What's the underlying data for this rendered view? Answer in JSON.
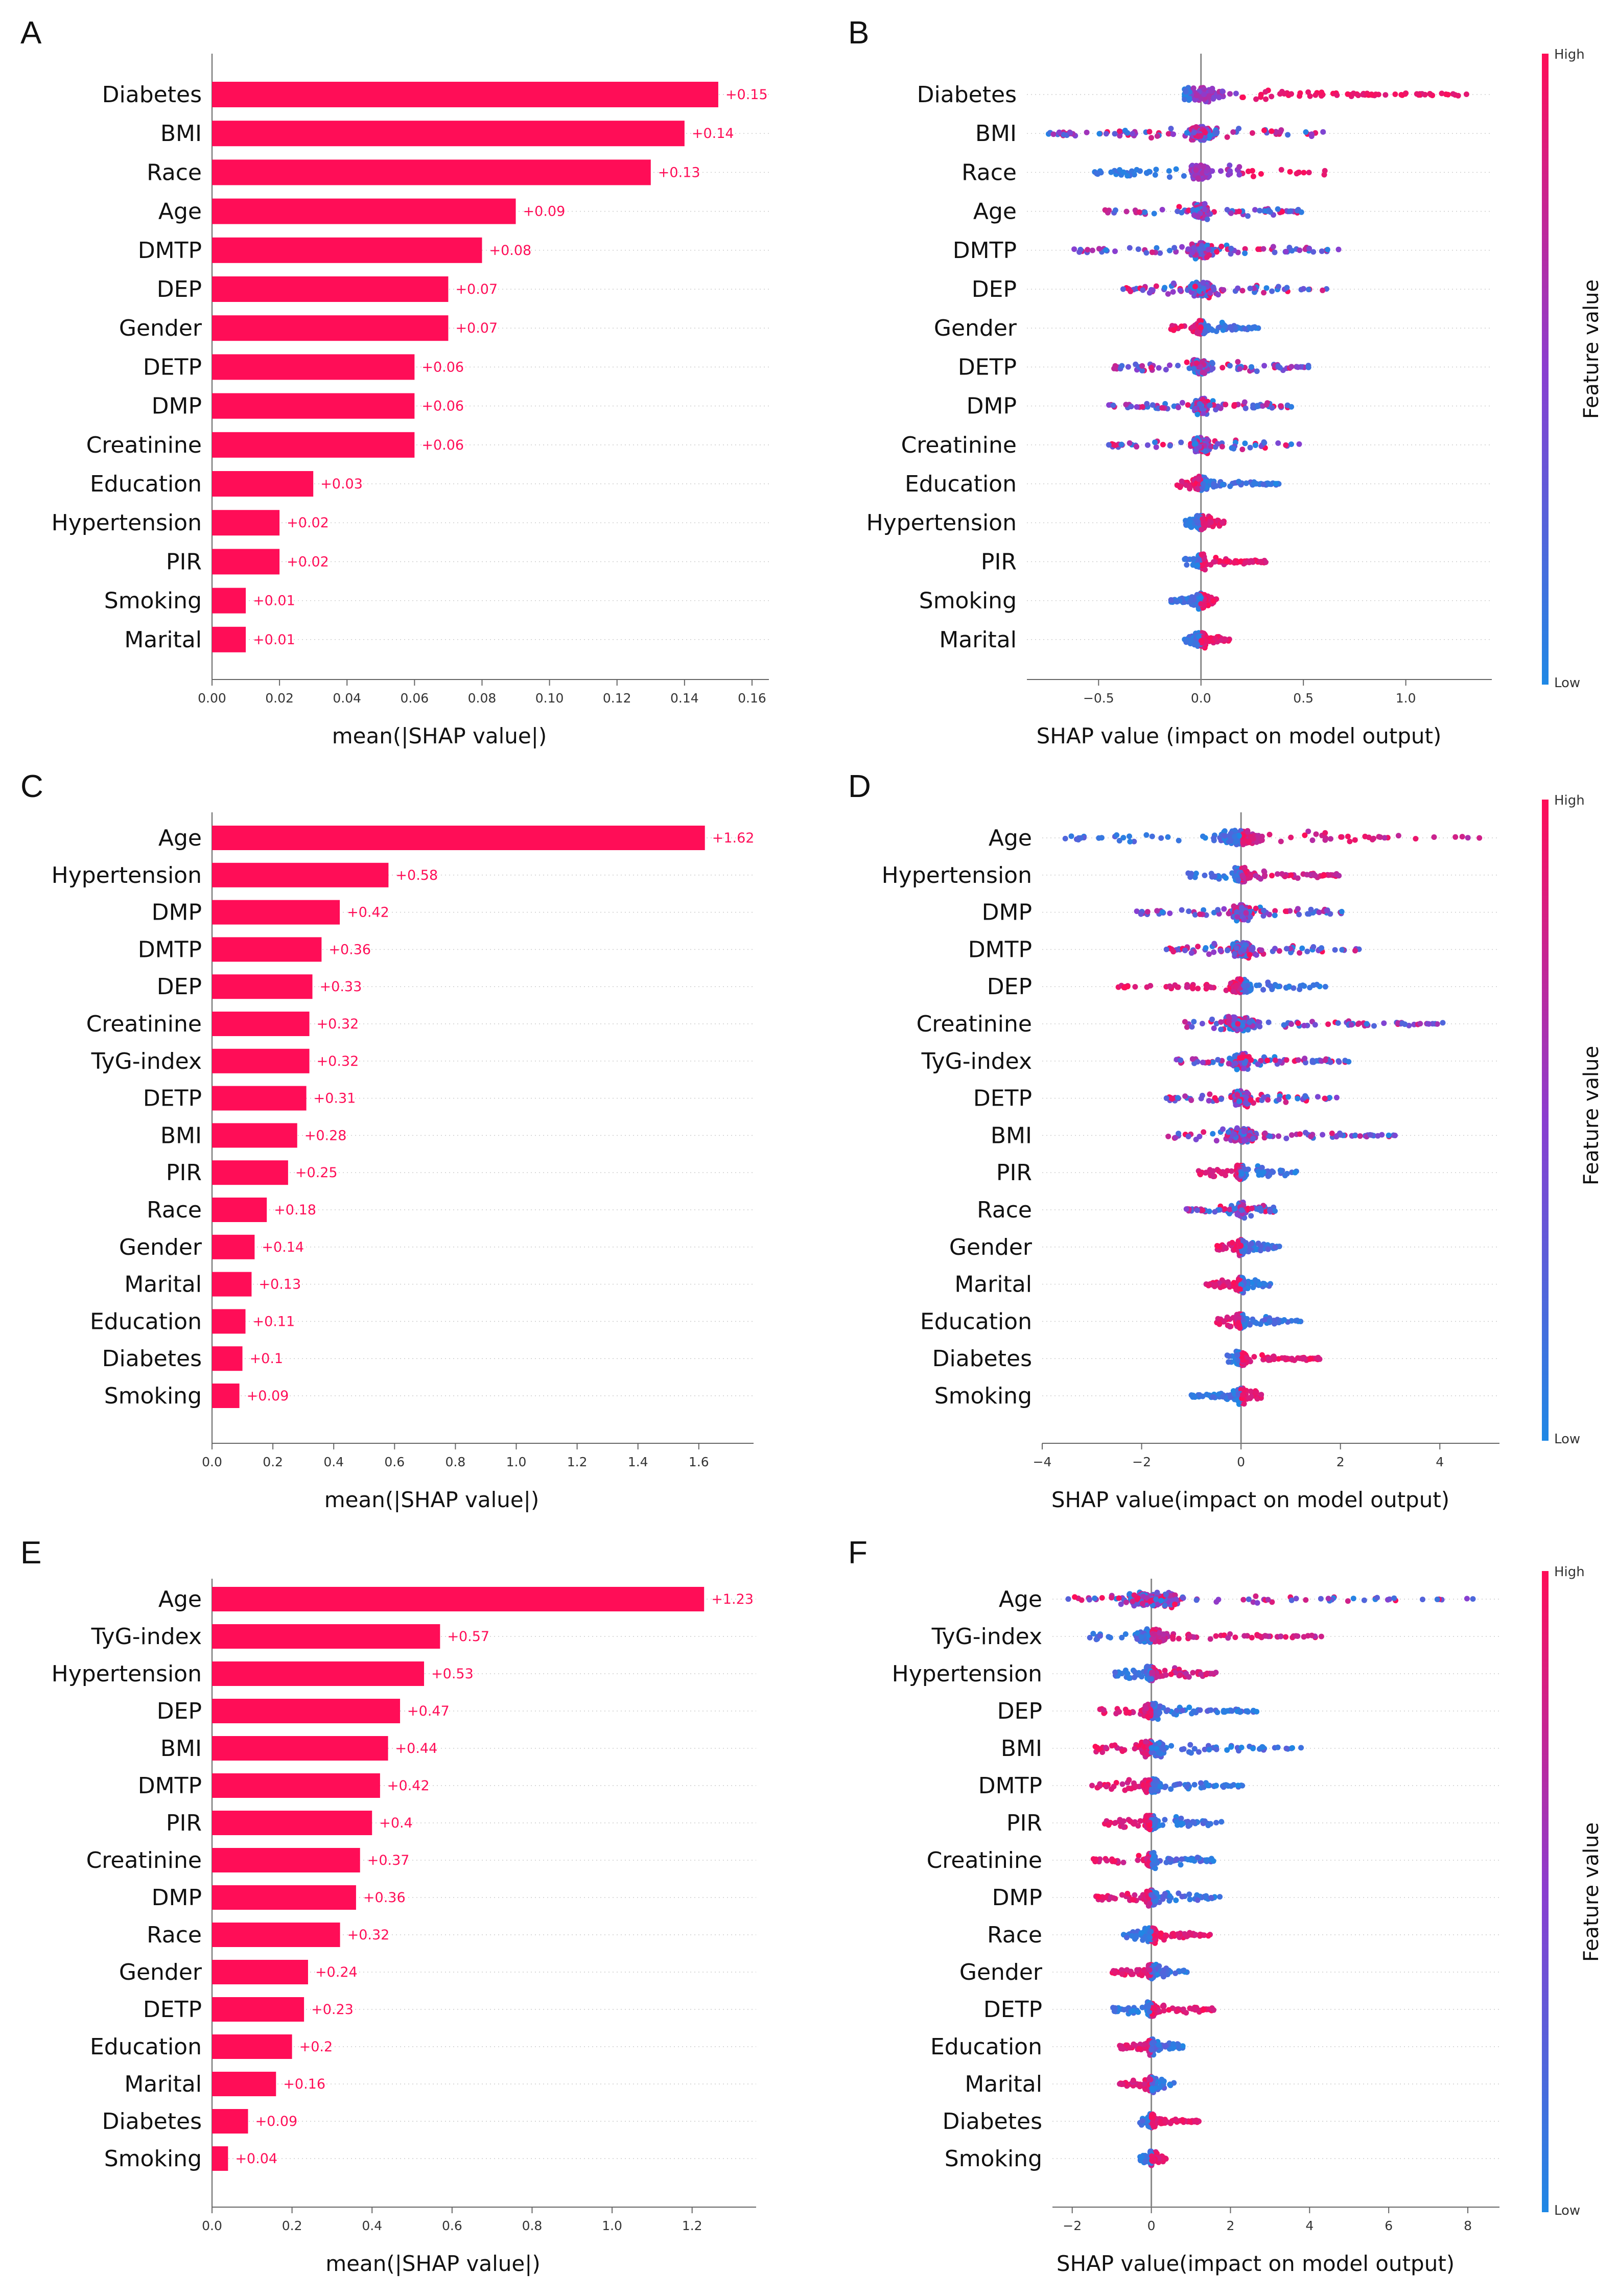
{
  "panel_labels": [
    "A",
    "B",
    "C",
    "D",
    "E",
    "F"
  ],
  "colors": {
    "high": "#ff0d57",
    "low": "#1e88e5",
    "mid": "#8a3dd0",
    "bar": "#ff0d57",
    "axis": "#666666",
    "zero": "#888888"
  },
  "colorbar": {
    "high": "High",
    "low": "Low",
    "title": "Feature value"
  },
  "chart_data": [
    {
      "type": "bar",
      "panel": "A",
      "categories": [
        "Diabetes",
        "BMI",
        "Race",
        "Age",
        "DMTP",
        "DEP",
        "Gender",
        "DETP",
        "DMP",
        "Creatinine",
        "Education",
        "Hypertension",
        "PIR",
        "Smoking",
        "Marital"
      ],
      "values": [
        0.15,
        0.14,
        0.13,
        0.09,
        0.08,
        0.07,
        0.07,
        0.06,
        0.06,
        0.06,
        0.03,
        0.02,
        0.02,
        0.01,
        0.01
      ],
      "value_labels": [
        "+0.15",
        "+0.14",
        "+0.13",
        "+0.09",
        "+0.08",
        "+0.07",
        "+0.07",
        "+0.06",
        "+0.06",
        "+0.06",
        "+0.03",
        "+0.02",
        "+0.02",
        "+0.01",
        "+0.01"
      ],
      "xlim": [
        0,
        0.165
      ],
      "xticks": [
        0,
        0.02,
        0.04,
        0.06,
        0.08,
        0.1,
        0.12,
        0.14,
        0.16
      ],
      "xtick_labels": [
        "0.00",
        "0.02",
        "0.04",
        "0.06",
        "0.08",
        "0.10",
        "0.12",
        "0.14",
        "0.16"
      ],
      "xlabel": "mean(|SHAP value|)"
    },
    {
      "type": "scatter",
      "panel": "B",
      "categories": [
        "Diabetes",
        "BMI",
        "Race",
        "Age",
        "DMTP",
        "DEP",
        "Gender",
        "DETP",
        "DMP",
        "Creatinine",
        "Education",
        "Hypertension",
        "PIR",
        "Smoking",
        "Marital"
      ],
      "xlim": [
        -0.85,
        1.42
      ],
      "xticks": [
        -0.5,
        0,
        0.5,
        1.0
      ],
      "xtick_labels": [
        "−0.5",
        "0.0",
        "0.5",
        "1.0"
      ],
      "xlabel": "SHAP value (impact on model output)",
      "ranges": [
        [
          -0.08,
          1.3
        ],
        [
          -0.75,
          0.6
        ],
        [
          -0.55,
          0.62
        ],
        [
          -0.48,
          0.5
        ],
        [
          -0.62,
          0.7
        ],
        [
          -0.38,
          0.62
        ],
        [
          -0.15,
          0.28
        ],
        [
          -0.45,
          0.55
        ],
        [
          -0.45,
          0.45
        ],
        [
          -0.45,
          0.5
        ],
        [
          -0.12,
          0.38
        ],
        [
          -0.08,
          0.12
        ],
        [
          -0.08,
          0.32
        ],
        [
          -0.15,
          0.08
        ],
        [
          -0.08,
          0.14
        ]
      ],
      "pattern": [
        "rhl",
        "mix",
        "rhl",
        "mix",
        "mix",
        "mix",
        "rl",
        "mix",
        "mix",
        "mix",
        "rl",
        "rh",
        "rh",
        "rh",
        "rh"
      ]
    },
    {
      "type": "bar",
      "panel": "C",
      "categories": [
        "Age",
        "Hypertension",
        "DMP",
        "DMTP",
        "DEP",
        "Creatinine",
        "TyG-index",
        "DETP",
        "BMI",
        "PIR",
        "Race",
        "Gender",
        "Marital",
        "Education",
        "Diabetes",
        "Smoking"
      ],
      "values": [
        1.62,
        0.58,
        0.42,
        0.36,
        0.33,
        0.32,
        0.32,
        0.31,
        0.28,
        0.25,
        0.18,
        0.14,
        0.13,
        0.11,
        0.1,
        0.09
      ],
      "value_labels": [
        "+1.62",
        "+0.58",
        "+0.42",
        "+0.36",
        "+0.33",
        "+0.32",
        "+0.32",
        "+0.31",
        "+0.28",
        "+0.25",
        "+0.18",
        "+0.14",
        "+0.13",
        "+0.11",
        "+0.1",
        "+0.09"
      ],
      "xlim": [
        0,
        1.78
      ],
      "xticks": [
        0,
        0.2,
        0.4,
        0.6,
        0.8,
        1.0,
        1.2,
        1.4,
        1.6
      ],
      "xtick_labels": [
        "0.0",
        "0.2",
        "0.4",
        "0.6",
        "0.8",
        "1.0",
        "1.2",
        "1.4",
        "1.6"
      ],
      "xlabel": "mean(|SHAP value|)"
    },
    {
      "type": "scatter",
      "panel": "D",
      "categories": [
        "Age",
        "Hypertension",
        "DMP",
        "DMTP",
        "DEP",
        "Creatinine",
        "TyG-index",
        "DETP",
        "BMI",
        "PIR",
        "Race",
        "Gender",
        "Marital",
        "Education",
        "Diabetes",
        "Smoking"
      ],
      "xlim": [
        -4,
        5.2
      ],
      "xticks": [
        -4,
        -2,
        0,
        2,
        4
      ],
      "xtick_labels": [
        "−4",
        "−2",
        "0",
        "2",
        "4"
      ],
      "xlabel": "SHAP value(impact on model output)",
      "ranges": [
        [
          -3.6,
          4.8
        ],
        [
          -1.1,
          2.0
        ],
        [
          -2.1,
          2.3
        ],
        [
          -1.5,
          2.4
        ],
        [
          -2.5,
          1.7
        ],
        [
          -1.3,
          4.2
        ],
        [
          -1.3,
          2.2
        ],
        [
          -1.5,
          2.0
        ],
        [
          -1.5,
          3.1
        ],
        [
          -0.9,
          1.2
        ],
        [
          -1.1,
          0.7
        ],
        [
          -0.5,
          0.8
        ],
        [
          -0.7,
          0.6
        ],
        [
          -0.5,
          1.2
        ],
        [
          -0.3,
          1.6
        ],
        [
          -1.0,
          0.5
        ]
      ],
      "pattern": [
        "lh",
        "lh",
        "mix",
        "mix",
        "rl",
        "mix",
        "mix",
        "mix",
        "mix",
        "rl",
        "mix",
        "rl",
        "rl",
        "rl",
        "rh",
        "rh"
      ]
    },
    {
      "type": "bar",
      "panel": "E",
      "categories": [
        "Age",
        "TyG-index",
        "Hypertension",
        "DEP",
        "BMI",
        "DMTP",
        "PIR",
        "Creatinine",
        "DMP",
        "Race",
        "Gender",
        "DETP",
        "Education",
        "Marital",
        "Diabetes",
        "Smoking"
      ],
      "values": [
        1.23,
        0.57,
        0.53,
        0.47,
        0.44,
        0.42,
        0.4,
        0.37,
        0.36,
        0.32,
        0.24,
        0.23,
        0.2,
        0.16,
        0.09,
        0.04
      ],
      "value_labels": [
        "+1.23",
        "+0.57",
        "+0.53",
        "+0.47",
        "+0.44",
        "+0.42",
        "+0.4",
        "+0.37",
        "+0.36",
        "+0.32",
        "+0.24",
        "+0.23",
        "+0.2",
        "+0.16",
        "+0.09",
        "+0.04"
      ],
      "xlim": [
        0,
        1.36
      ],
      "xticks": [
        0,
        0.2,
        0.4,
        0.6,
        0.8,
        1.0,
        1.2
      ],
      "xtick_labels": [
        "0.0",
        "0.2",
        "0.4",
        "0.6",
        "0.8",
        "1.0",
        "1.2"
      ],
      "xlabel": "mean(|SHAP value|)"
    },
    {
      "type": "scatter",
      "panel": "F",
      "categories": [
        "Age",
        "TyG-index",
        "Hypertension",
        "DEP",
        "BMI",
        "DMTP",
        "PIR",
        "Creatinine",
        "DMP",
        "Race",
        "Gender",
        "DETP",
        "Education",
        "Marital",
        "Diabetes",
        "Smoking"
      ],
      "xlim": [
        -2.5,
        8.8
      ],
      "xticks": [
        -2,
        0,
        2,
        4,
        6,
        8
      ],
      "xtick_labels": [
        "−2",
        "0",
        "2",
        "4",
        "6",
        "8"
      ],
      "xlabel": "SHAP value(impact on model output)",
      "ranges": [
        [
          -2.1,
          8.2
        ],
        [
          -1.6,
          4.3
        ],
        [
          -1.0,
          1.7
        ],
        [
          -1.3,
          2.7
        ],
        [
          -1.5,
          3.9
        ],
        [
          -1.5,
          2.3
        ],
        [
          -1.2,
          1.9
        ],
        [
          -1.5,
          1.6
        ],
        [
          -1.4,
          1.8
        ],
        [
          -0.7,
          1.5
        ],
        [
          -1.0,
          0.9
        ],
        [
          -1.0,
          1.6
        ],
        [
          -0.8,
          0.9
        ],
        [
          -0.8,
          0.6
        ],
        [
          -0.3,
          1.2
        ],
        [
          -0.3,
          0.4
        ]
      ],
      "pattern": [
        "mix",
        "lh",
        "lh",
        "rl",
        "rl",
        "rl",
        "rl",
        "rl",
        "rl",
        "rh",
        "rl",
        "rh",
        "rl",
        "rl",
        "rh",
        "rh"
      ]
    }
  ]
}
